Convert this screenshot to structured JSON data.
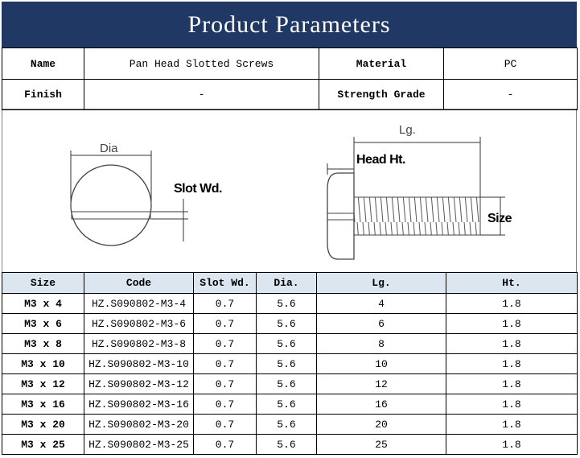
{
  "header": {
    "title": "Product Parameters"
  },
  "specs": {
    "rows": [
      [
        "Name",
        "Pan Head Slotted Screws",
        "Material",
        "PC"
      ],
      [
        "Finish",
        "-",
        "Strength Grade",
        "-"
      ]
    ]
  },
  "diagram": {
    "dia": "Dia",
    "slot": "Slot Wd.",
    "length": "Lg.",
    "head": "Head Ht.",
    "size": "Size"
  },
  "table": {
    "headers": [
      "Size",
      "Code",
      "Slot Wd.",
      "Dia.",
      "Lg.",
      "Ht."
    ],
    "rows": [
      [
        "M3 x 4",
        "HZ.S090802-M3-4",
        0.7,
        5.6,
        4,
        1.8
      ],
      [
        "M3 x 6",
        "HZ.S090802-M3-6",
        0.7,
        5.6,
        6,
        1.8
      ],
      [
        "M3 x 8",
        "HZ.S090802-M3-8",
        0.7,
        5.6,
        8,
        1.8
      ],
      [
        "M3 x 10",
        "HZ.S090802-M3-10",
        0.7,
        5.6,
        10,
        1.8
      ],
      [
        "M3 x 12",
        "HZ.S090802-M3-12",
        0.7,
        5.6,
        12,
        1.8
      ],
      [
        "M3 x 16",
        "HZ.S090802-M3-16",
        0.7,
        5.6,
        16,
        1.8
      ],
      [
        "M3 x 20",
        "HZ.S090802-M3-20",
        0.7,
        5.6,
        20,
        1.8
      ],
      [
        "M3 x 25",
        "HZ.S090802-M3-25",
        0.7,
        5.6,
        25,
        1.8
      ]
    ]
  }
}
